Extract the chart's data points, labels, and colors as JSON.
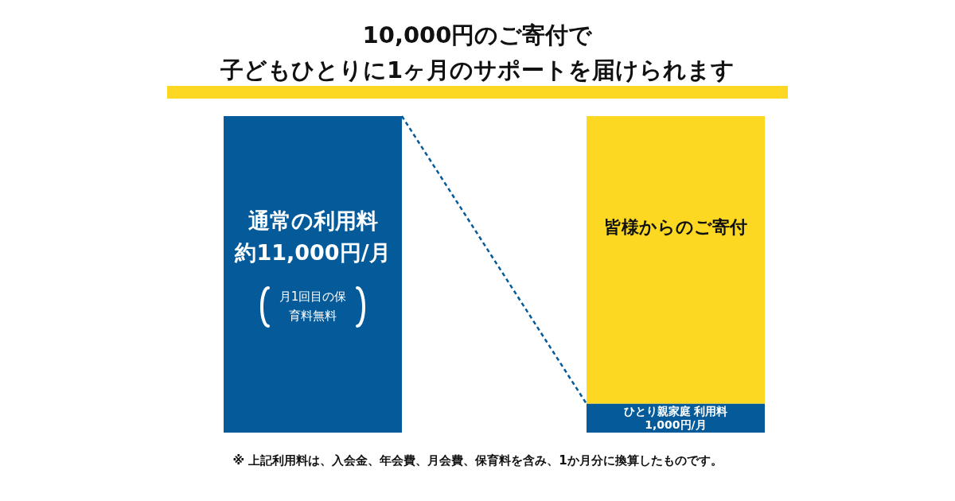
{
  "chart_data": {
    "type": "bar",
    "title": "10,000円のご寄付で",
    "subtitle": "子どもひとりに1ヶ月のサポートを届けられます",
    "categories": [
      null,
      null
    ],
    "stacked": true,
    "series": [
      {
        "color": "#055a9a",
        "values": [
          11000,
          1000
        ],
        "value_labels": [
          "約11,000円/月",
          "1,000円/月"
        ]
      },
      {
        "name": "皆様からのご寄付",
        "color": "#fcd823",
        "values": [
          null,
          10000
        ]
      }
    ],
    "annotations": [
      "通常の利用料",
      "月1回目の保育料無料",
      "ひとり親家庭 利用料",
      "※ 上記利用料は、入会金、年会費、月会費、保育料を含み、1か月分に換算したものです。"
    ]
  }
}
